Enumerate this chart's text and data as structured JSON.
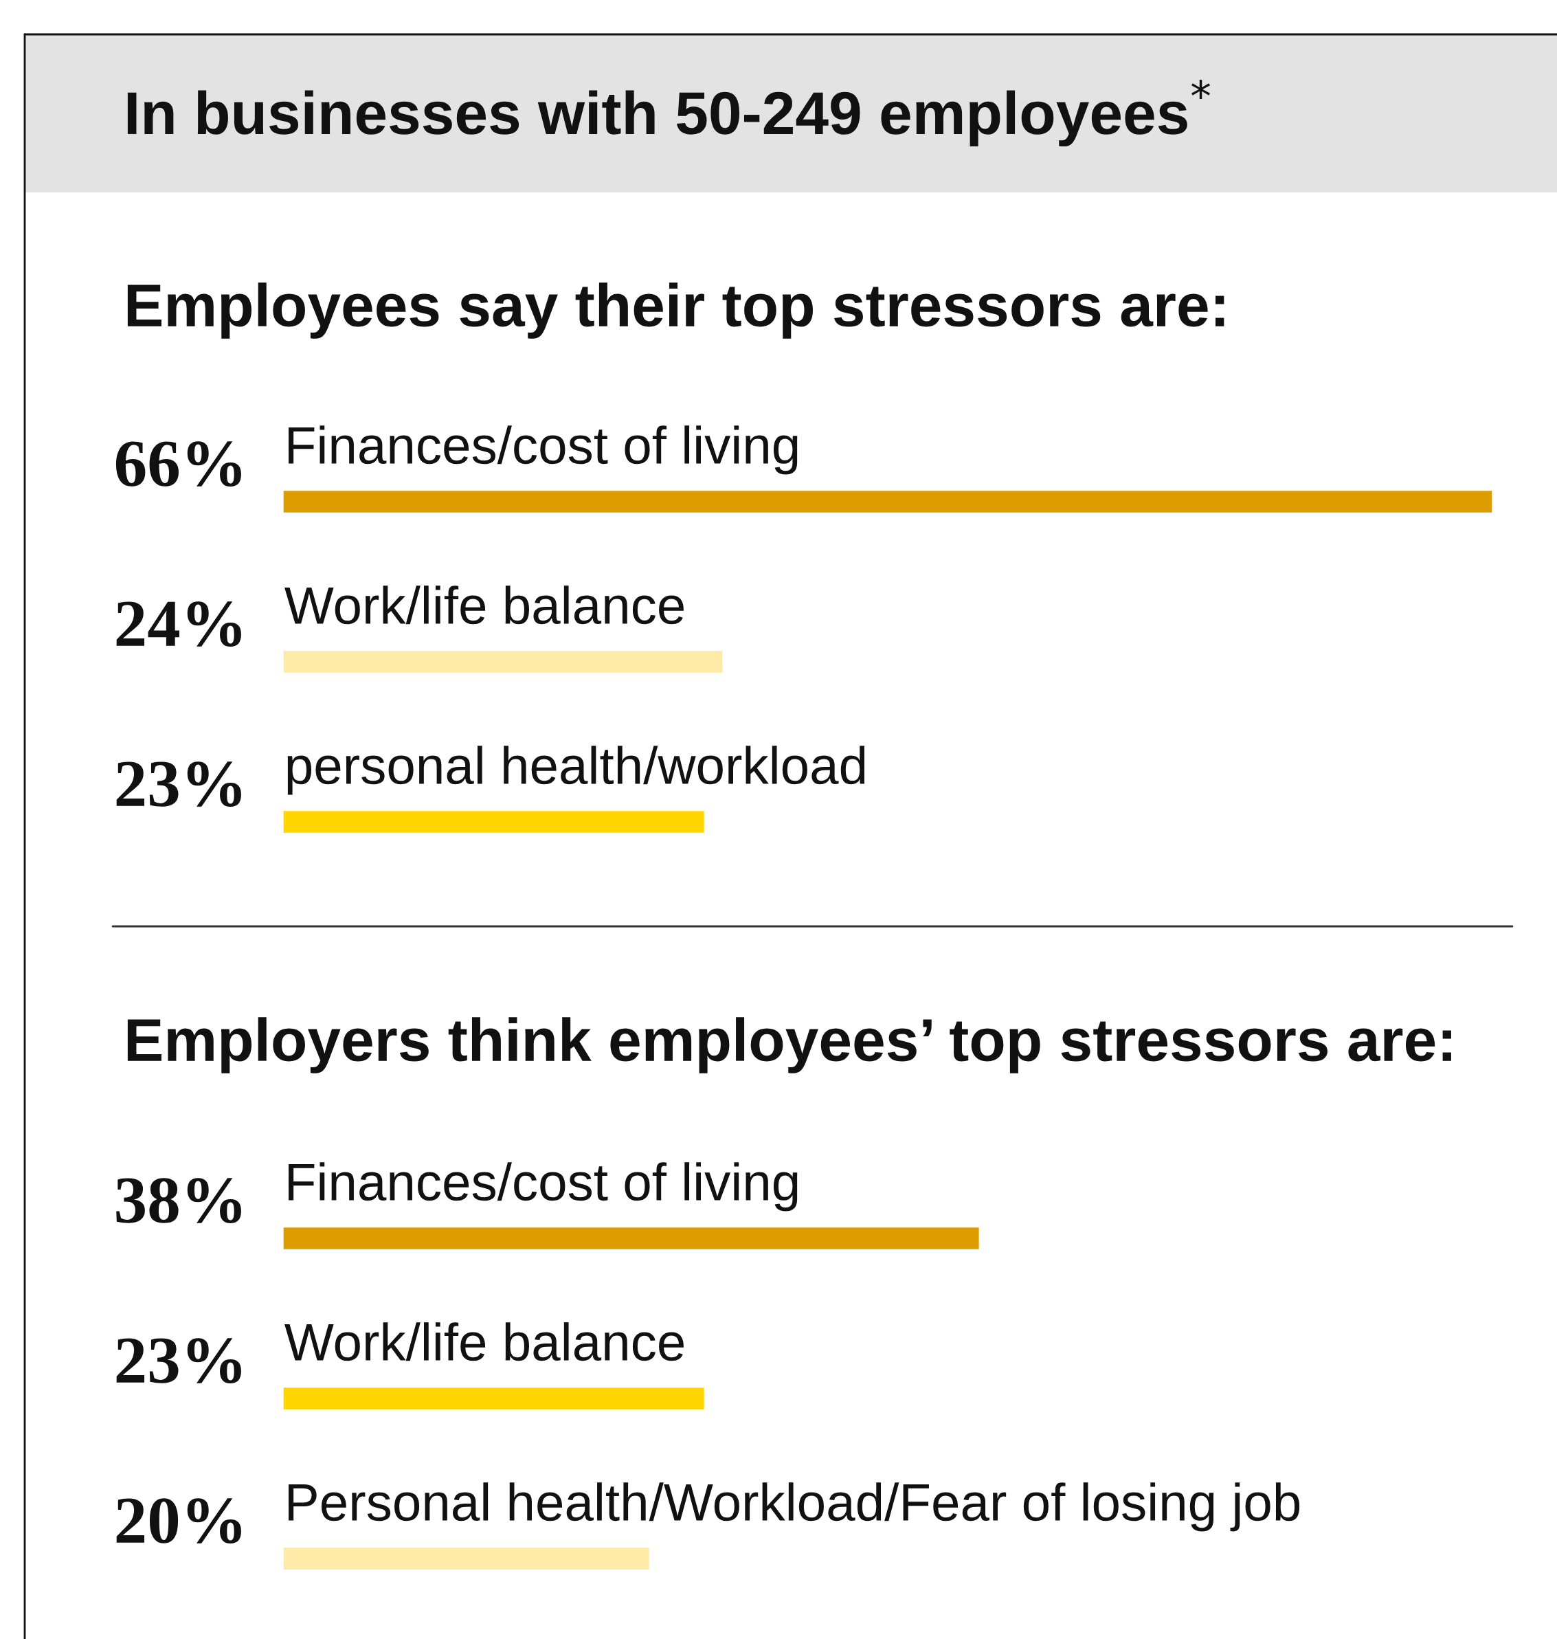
{
  "chart_data": [
    {
      "type": "bar",
      "orientation": "horizontal",
      "title": "Employees say their top stressors are:",
      "annotations": [
        "In businesses with 50-249 employees$^{*}$"
      ],
      "categories": [
        "Finances/cost of living",
        "Work/life balance",
        "personal health/workload"
      ],
      "values": [
        66,
        24,
        23
      ],
      "colors": [
        "#dd9c00",
        "#feeba7",
        "#ffd500"
      ],
      "value_labels": [
        "66%",
        "24%",
        "23%"
      ]
    },
    {
      "type": "bar",
      "orientation": "horizontal",
      "title": "Employers think employees’ top stressors are:",
      "categories": [
        "Finances/cost of living",
        "Work/life balance",
        "Personal health/Workload/Fear of losing job"
      ],
      "values": [
        38,
        23,
        20
      ],
      "colors": [
        "#dd9c00",
        "#ffd500",
        "#feeba7"
      ],
      "value_labels": [
        "38%",
        "23%",
        "20%"
      ]
    }
  ]
}
